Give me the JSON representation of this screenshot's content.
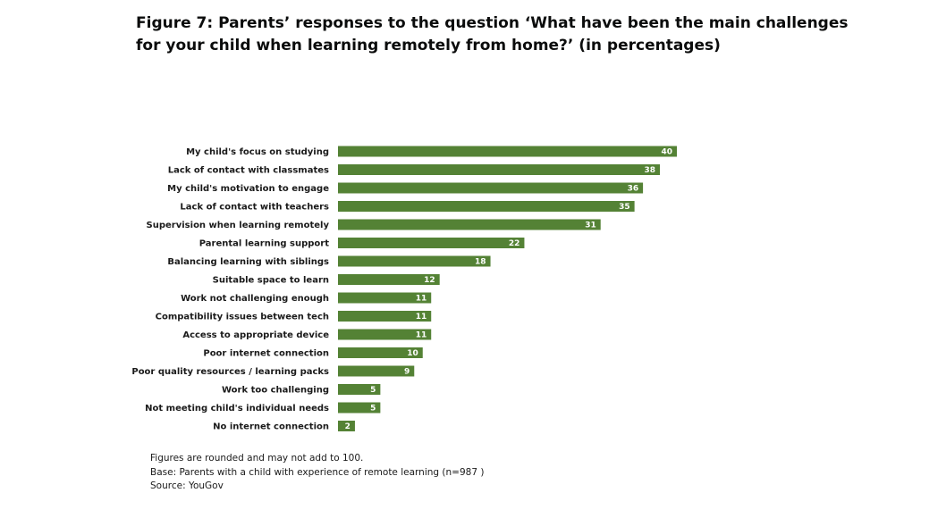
{
  "chart_data": {
    "type": "bar",
    "orientation": "horizontal",
    "title": "Figure 7: Parents’ responses to the question ‘What have been the main challenges for your child when learning remotely from home?’ (in percentages)",
    "title_lines": [
      "Figure 7: Parents’ responses to the question ‘What have been the main challenges",
      "for your child when learning remotely from home?’ (in percentages)"
    ],
    "categories": [
      "My child's focus on studying",
      "Lack of contact with classmates",
      "My child's motivation to engage",
      "Lack of contact with teachers",
      "Supervision when learning remotely",
      "Parental learning support",
      "Balancing learning with siblings",
      "Suitable space to learn",
      "Work not challenging enough",
      "Compatibility issues between tech",
      "Access to appropriate device",
      "Poor internet connection",
      "Poor quality resources / learning packs",
      "Work too challenging",
      "Not meeting child's individual needs",
      "No internet connection"
    ],
    "values": [
      40,
      38,
      36,
      35,
      31,
      22,
      18,
      12,
      11,
      11,
      11,
      10,
      9,
      5,
      5,
      2
    ],
    "xlim": [
      0,
      40
    ],
    "grid": false,
    "legend": "none",
    "colors": {
      "bar": "#548235",
      "value_label": "#ffffff"
    }
  },
  "notes": [
    "Figures are rounded and may not add to 100.",
    "Base: Parents with  a  child  with  experience of remote learning  (n=987 )",
    "Source: YouGov"
  ]
}
